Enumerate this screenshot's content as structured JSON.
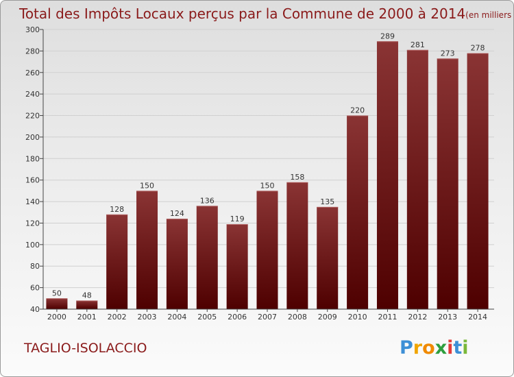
{
  "chart_data": {
    "type": "bar",
    "title": "Total des Impôts Locaux perçus par la Commune de 2000 à 2014",
    "subtitle": "(en milliers d'€)",
    "categories": [
      "2000",
      "2001",
      "2002",
      "2003",
      "2004",
      "2005",
      "2006",
      "2007",
      "2008",
      "2009",
      "2010",
      "2011",
      "2012",
      "2013",
      "2014"
    ],
    "values": [
      50,
      48,
      128,
      150,
      124,
      136,
      119,
      150,
      158,
      135,
      220,
      289,
      281,
      273,
      278
    ],
    "ylim": [
      40,
      300
    ],
    "yticks": [
      40,
      60,
      80,
      100,
      120,
      140,
      160,
      180,
      200,
      220,
      240,
      260,
      280,
      300
    ],
    "grid": true,
    "bar_color_top": "#8a3434",
    "bar_color_bottom": "#4e0000",
    "xlabel": "",
    "ylabel": ""
  },
  "commune": "TAGLIO-ISOLACCIO",
  "logo": {
    "text": "Proxiti",
    "letters": [
      "P",
      "r",
      "o",
      "x",
      "i",
      "t",
      "i"
    ],
    "colors": [
      "#3d8fd6",
      "#f0a500",
      "#f08a00",
      "#2e9e3e",
      "#e23b3b",
      "#3d8fd6",
      "#7ab83a"
    ]
  },
  "colors": {
    "title": "#8a1a1a",
    "axis": "#444444",
    "grid": "#d0d0d0"
  }
}
